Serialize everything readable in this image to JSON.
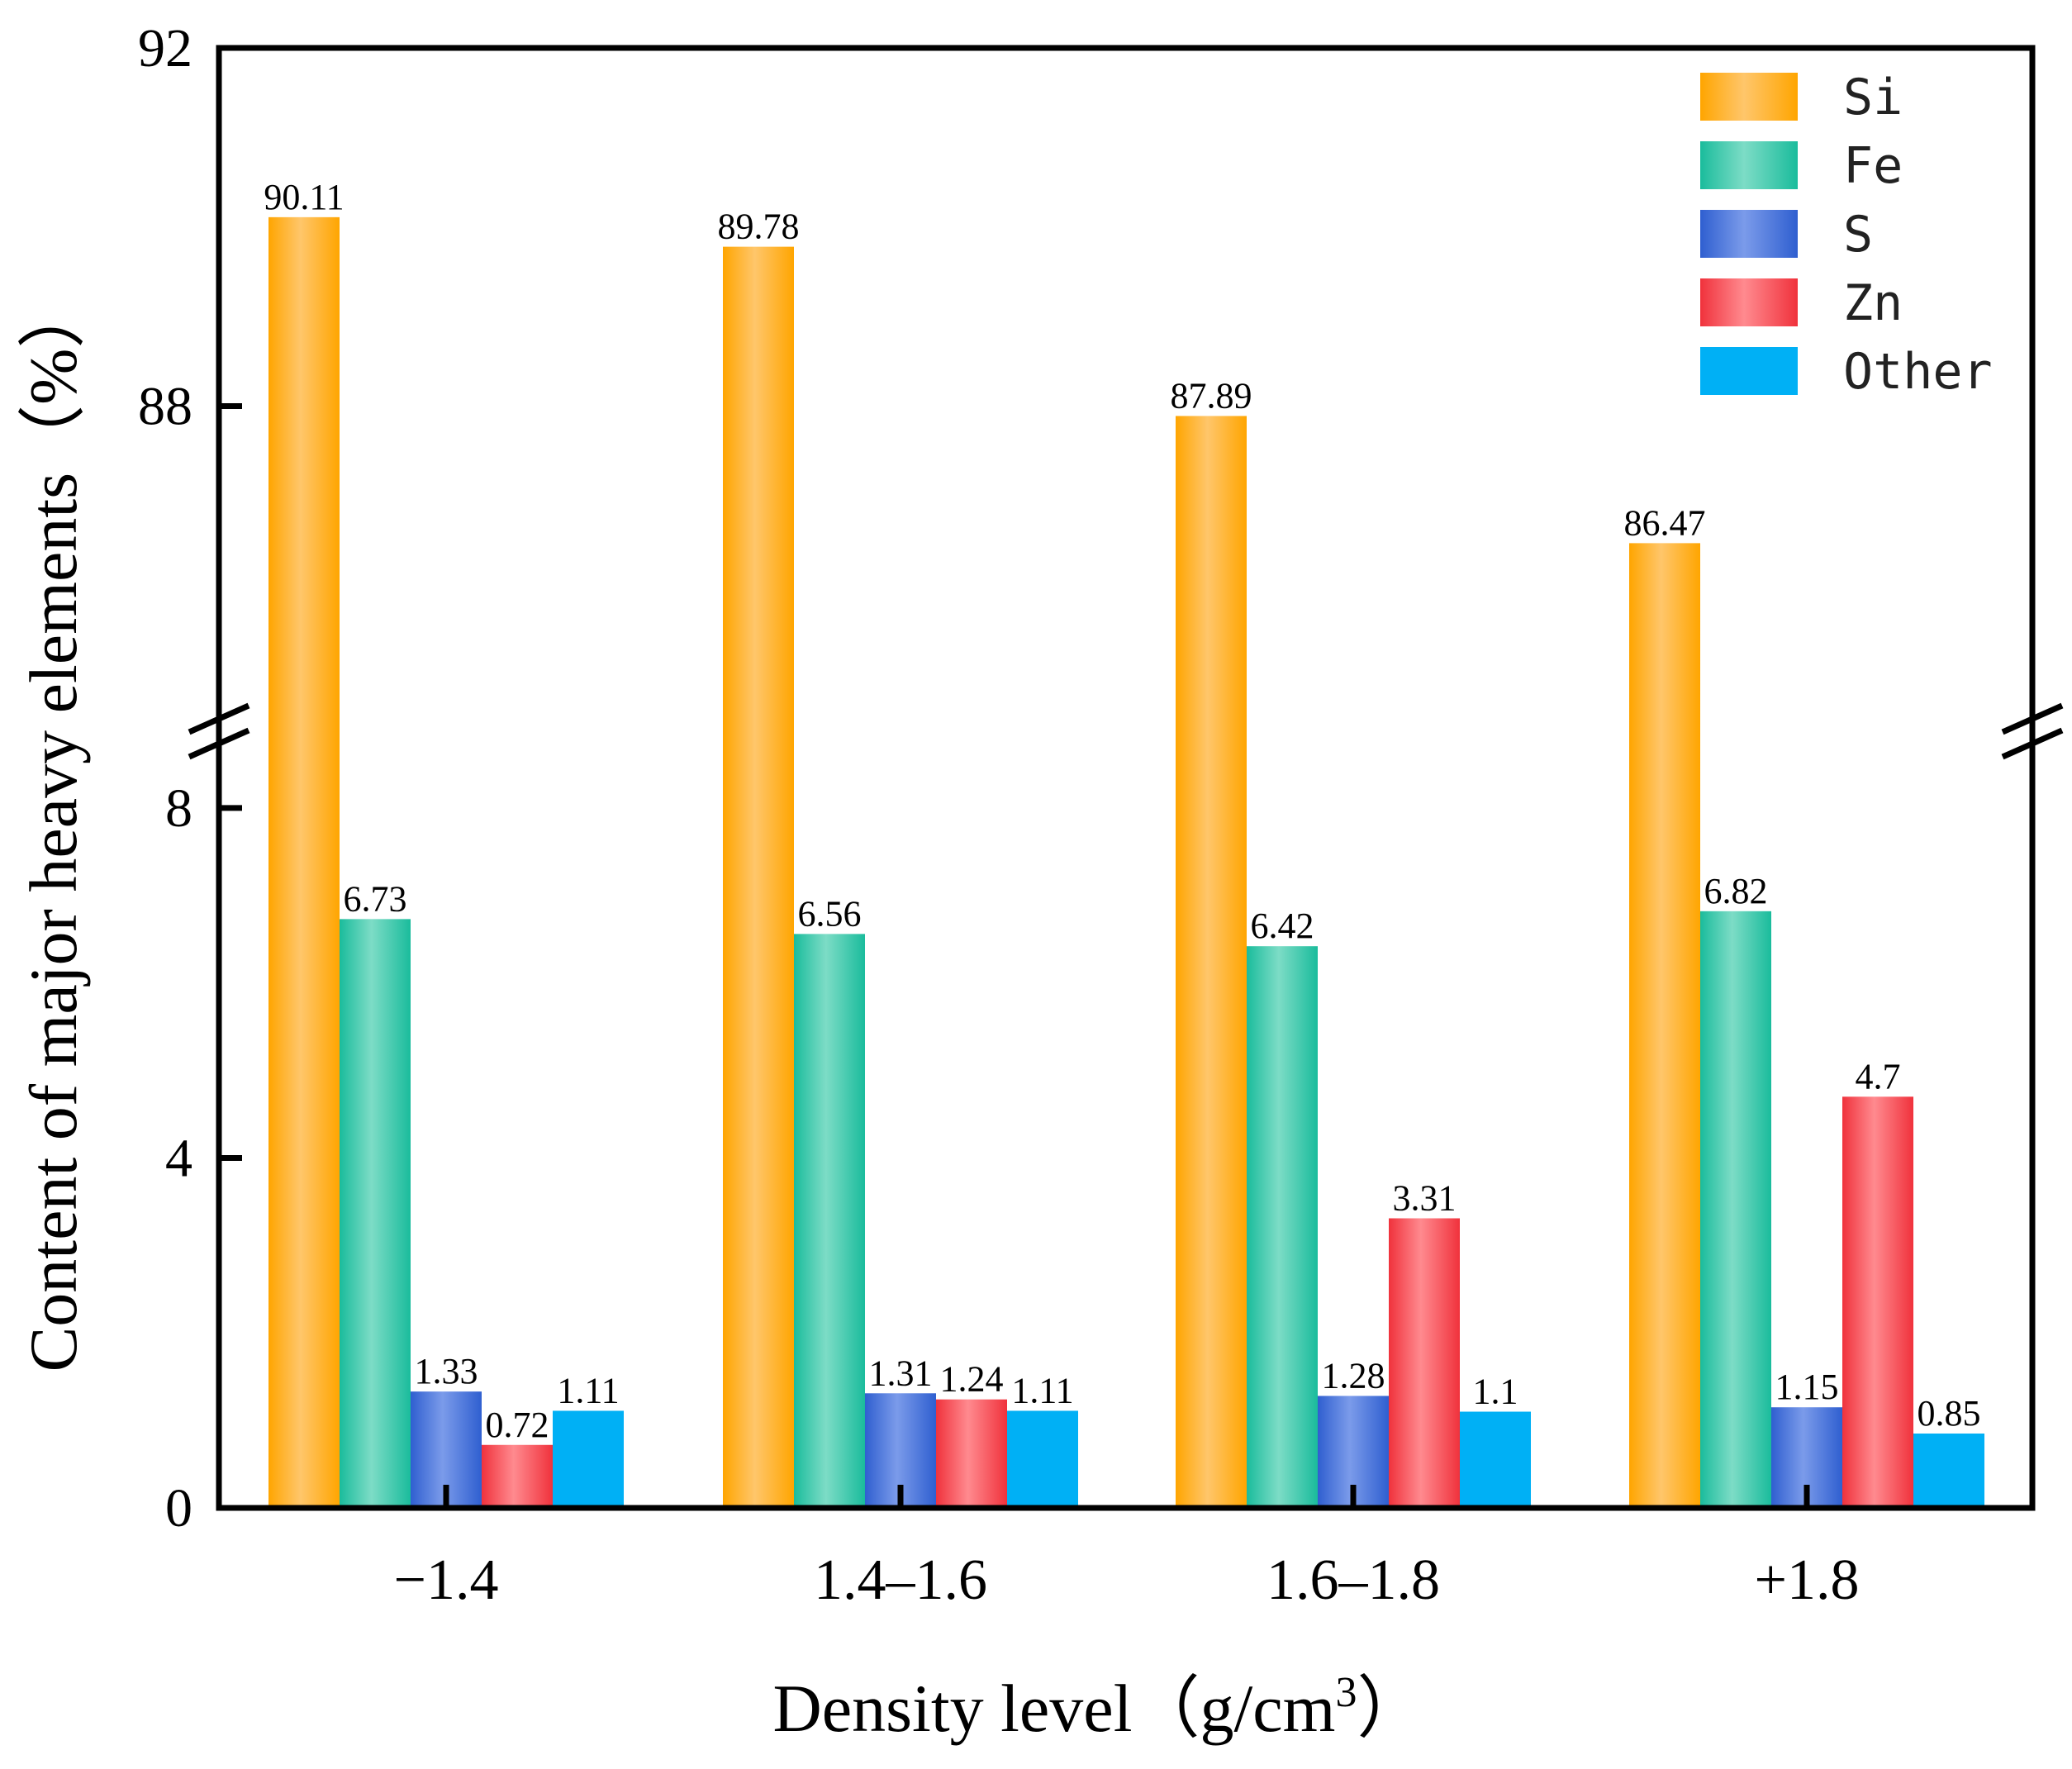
{
  "chart_data": {
    "type": "bar",
    "title": "",
    "xlabel": "Density level（g/cm",
    "xlabel_superscript": "3",
    "xlabel_suffix": "）",
    "ylabel": "Content of major heavy elements（%）",
    "categories": [
      "−1.4",
      "1.4–1.6",
      "1.6–1.8",
      "+1.8"
    ],
    "series": [
      {
        "name": "Si",
        "values": [
          90.11,
          89.78,
          87.89,
          86.47
        ],
        "labels": [
          "90.11",
          "89.78",
          "87.89",
          "86.47"
        ],
        "color": "#FFA500",
        "color_light": "#FFC66B"
      },
      {
        "name": "Fe",
        "values": [
          6.73,
          6.56,
          6.42,
          6.82
        ],
        "labels": [
          "6.73",
          "6.56",
          "6.42",
          "6.82"
        ],
        "color": "#1ABC9C",
        "color_light": "#7DDCC6"
      },
      {
        "name": "S",
        "values": [
          1.33,
          1.31,
          1.28,
          1.15
        ],
        "labels": [
          "1.33",
          "1.31",
          "1.28",
          "1.15"
        ],
        "color": "#2F5FD0",
        "color_light": "#7B9BEA"
      },
      {
        "name": "Zn",
        "values": [
          0.72,
          1.24,
          3.31,
          4.7
        ],
        "labels": [
          "0.72",
          "1.24",
          "3.31",
          "4.7"
        ],
        "color": "#F0323C",
        "color_light": "#FF8A8F"
      },
      {
        "name": "Other",
        "values": [
          1.11,
          1.11,
          1.1,
          0.85
        ],
        "labels": [
          "1.11",
          "1.11",
          "1.1",
          "0.85"
        ],
        "color": "#00B0F5",
        "color_light": "#00B0F5"
      }
    ],
    "y_axis": {
      "broken": true,
      "lower_range": [
        0,
        9
      ],
      "upper_range": [
        84.25,
        92
      ],
      "ticks": [
        {
          "value": 0,
          "label": "0"
        },
        {
          "value": 4,
          "label": "4"
        },
        {
          "value": 8,
          "label": "8"
        },
        {
          "value": 88,
          "label": "88"
        },
        {
          "value": 92,
          "label": "92"
        }
      ]
    },
    "legend": {
      "position": "top-right",
      "entries": [
        "Si",
        "Fe",
        "S",
        "Zn",
        "Other"
      ]
    },
    "grid": false
  }
}
